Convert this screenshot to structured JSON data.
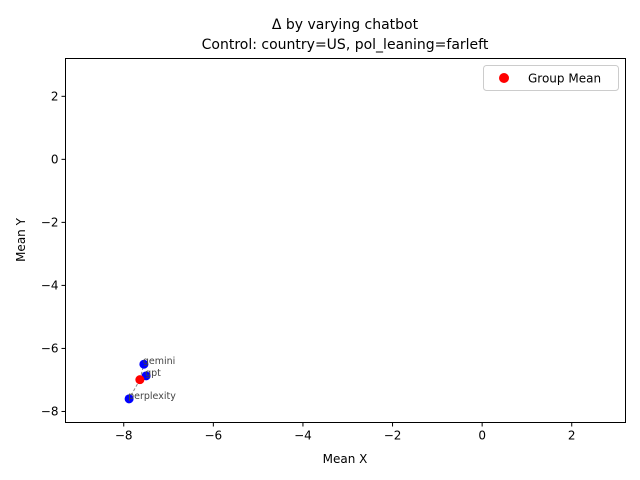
{
  "chart_data": {
    "type": "scatter",
    "title": "Δ by varying chatbot",
    "subtitle": "Control: country=US, pol_leaning=farleft",
    "xlabel": "Mean X",
    "ylabel": "Mean Y",
    "xlim": [
      -9.3,
      3.2
    ],
    "ylim": [
      -8.35,
      3.2
    ],
    "xticks": [
      -8,
      -6,
      -4,
      -2,
      0,
      2
    ],
    "yticks": [
      -8,
      -6,
      -4,
      -2,
      0,
      2
    ],
    "tick_labels_x": [
      "−8",
      "−6",
      "−4",
      "−2",
      "0",
      "2"
    ],
    "tick_labels_y": [
      "−8",
      "−6",
      "−4",
      "−2",
      "0",
      "2"
    ],
    "points": [
      {
        "label": "gemini",
        "x": -7.55,
        "y": -6.5
      },
      {
        "label": "gpt",
        "x": -7.5,
        "y": -6.87
      },
      {
        "label": "perplexity",
        "x": -7.88,
        "y": -7.6
      }
    ],
    "group_mean": {
      "x": -7.64,
      "y": -6.99
    },
    "legend": {
      "entries": [
        "Group Mean"
      ],
      "position": "upper right"
    },
    "colors": {
      "points": "#0000ff",
      "group_mean": "#ff0000",
      "connector": "#888888"
    },
    "grid": false
  }
}
